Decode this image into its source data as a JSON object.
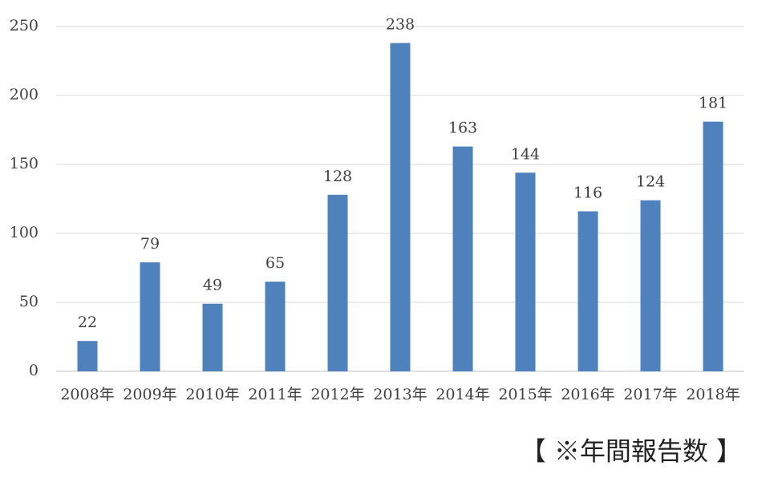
{
  "chart_data": {
    "type": "bar",
    "categories": [
      "2008年",
      "2009年",
      "2010年",
      "2011年",
      "2012年",
      "2013年",
      "2014年",
      "2015年",
      "2016年",
      "2017年",
      "2018年"
    ],
    "values": [
      22,
      79,
      49,
      65,
      128,
      238,
      163,
      144,
      116,
      124,
      181
    ],
    "color": "#4f81bd",
    "ylim": [
      0,
      250
    ],
    "yticks": [
      0,
      50,
      100,
      150,
      200,
      250
    ],
    "grid": true,
    "note": "【 ※年間報告数 】"
  }
}
